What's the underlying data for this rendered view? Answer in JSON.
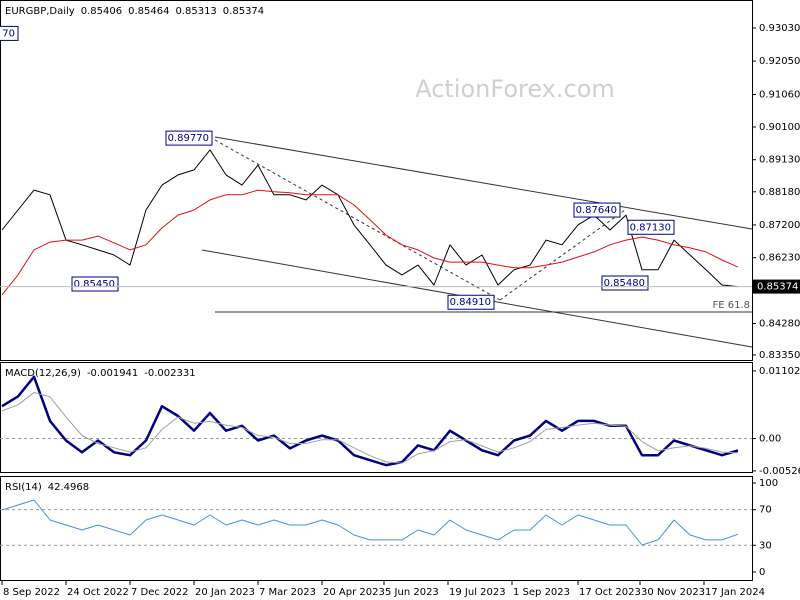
{
  "watermark": "ActionForex.com",
  "chart_data": [
    {
      "type": "line",
      "title": "EURGBP,Daily",
      "readout": [
        0.85406,
        0.85464,
        0.85313,
        0.85374
      ],
      "xlim": [
        -1,
        375
      ],
      "xticks": [
        {
          "value": 0,
          "label": "8 Sep 2022"
        },
        {
          "value": 32,
          "label": "24 Oct 2022"
        },
        {
          "value": 64,
          "label": "7 Dec 2022"
        },
        {
          "value": 96,
          "label": "20 Jan 2023"
        },
        {
          "value": 128,
          "label": "7 Mar 2023"
        },
        {
          "value": 160,
          "label": "20 Apr 2023"
        },
        {
          "value": 191,
          "label": "5 Jun 2023"
        },
        {
          "value": 223,
          "label": "19 Jul 2023"
        },
        {
          "value": 255,
          "label": "1 Sep 2023"
        },
        {
          "value": 288,
          "label": "17 Oct 2023"
        },
        {
          "value": 319,
          "label": "30 Nov 2023"
        },
        {
          "value": 351,
          "label": "17 Jan 2024"
        }
      ],
      "x": [
        0,
        8,
        16,
        24,
        32,
        40,
        48,
        56,
        64,
        72,
        80,
        88,
        96,
        104,
        112,
        120,
        128,
        136,
        144,
        152,
        160,
        168,
        176,
        184,
        192,
        200,
        208,
        216,
        224,
        232,
        240,
        248,
        256,
        264,
        272,
        280,
        288,
        296,
        304,
        312,
        320,
        328,
        336,
        344,
        352,
        360,
        368
      ],
      "ylim": [
        0.832,
        0.938
      ],
      "yticks": [
        {
          "value": 0.9303,
          "label": "0.93030"
        },
        {
          "value": 0.9205,
          "label": "0.92050"
        },
        {
          "value": 0.9106,
          "label": "0.91060"
        },
        {
          "value": 0.901,
          "label": "0.90100"
        },
        {
          "value": 0.8913,
          "label": "0.89130"
        },
        {
          "value": 0.8818,
          "label": "0.88180"
        },
        {
          "value": 0.872,
          "label": "0.87200"
        },
        {
          "value": 0.8623,
          "label": "0.86230"
        },
        {
          "value": 0.8526,
          "label": "0.85260"
        },
        {
          "value": 0.8428,
          "label": "0.84280"
        },
        {
          "value": 0.8335,
          "label": "0.83350"
        }
      ],
      "series": [
        {
          "color": "#000000",
          "values": [
            0.8705,
            0.8764,
            0.8823,
            0.8809,
            0.8675,
            0.8661,
            0.8646,
            0.8631,
            0.8601,
            0.8764,
            0.8838,
            0.8868,
            0.8883,
            0.8942,
            0.8868,
            0.8838,
            0.8897,
            0.8809,
            0.8809,
            0.8794,
            0.8838,
            0.8809,
            0.872,
            0.8661,
            0.8601,
            0.8572,
            0.8601,
            0.8542,
            0.8661,
            0.8601,
            0.8631,
            0.8542,
            0.8587,
            0.8601,
            0.8675,
            0.8661,
            0.872,
            0.8749,
            0.8705,
            0.8749,
            0.8587,
            0.8587,
            0.8675,
            0.8631,
            0.8587,
            0.8542,
            0.85374
          ]
        },
        {
          "color": "#e01010",
          "values": [
            0.8513,
            0.8572,
            0.8646,
            0.8669,
            0.8675,
            0.8675,
            0.8687,
            0.8667,
            0.8646,
            0.8661,
            0.8711,
            0.8749,
            0.8764,
            0.8794,
            0.8809,
            0.8809,
            0.8823,
            0.8818,
            0.8815,
            0.8809,
            0.8809,
            0.8809,
            0.8779,
            0.8735,
            0.869,
            0.8661,
            0.8646,
            0.8622,
            0.861,
            0.861,
            0.861,
            0.8601,
            0.8593,
            0.8593,
            0.8601,
            0.861,
            0.8625,
            0.864,
            0.8661,
            0.8675,
            0.8684,
            0.8675,
            0.8661,
            0.8652,
            0.864,
            0.8616,
            0.8595
          ]
        }
      ],
      "annotations": [
        {
          "text": "70",
          "x": 8,
          "y": 0.9287
        },
        {
          "text": "0.89770",
          "x": 105,
          "y": 0.8977
        },
        {
          "text": "0.85450",
          "x": 58,
          "y": 0.8545
        },
        {
          "text": "0.84910",
          "x": 246,
          "y": 0.8491
        },
        {
          "text": "0.87640",
          "x": 309,
          "y": 0.8764
        },
        {
          "text": "0.87130",
          "x": 336,
          "y": 0.8713
        },
        {
          "text": "0.85480",
          "x": 323,
          "y": 0.8548
        }
      ],
      "hlines": [
        {
          "value": 0.8462,
          "label": "FE 61.8"
        }
      ]
    },
    {
      "type": "line",
      "title": "MACD(12,26,9)",
      "readout": [
        -0.001941,
        -0.002331
      ],
      "ylim": [
        -0.00545,
        0.01215
      ],
      "yticks": [
        0.011027,
        {
          "value": 0,
          "label": "0.00"
        },
        -0.005267
      ],
      "levels": [
        0
      ],
      "series": [
        {
          "color": "#000080",
          "width": 2.5,
          "values": [
            0.00527,
            0.00687,
            0.01007,
            0.00288,
            -0.00032,
            -0.00224,
            -0.00032,
            -0.00224,
            -0.00272,
            -0.00032,
            0.00527,
            0.00368,
            0.00128,
            0.00416,
            0.00128,
            0.00208,
            -0.00032,
            0.00048,
            -0.0016,
            -0.00032,
            0.00048,
            -0.00032,
            -0.00272,
            -0.00352,
            -0.00432,
            -0.00384,
            -0.00112,
            -0.00192,
            0.00128,
            -0.00032,
            -0.00192,
            -0.00272,
            -0.00032,
            0.00048,
            0.00288,
            0.00128,
            0.00288,
            0.00288,
            0.00208,
            0.00208,
            -0.00272,
            -0.00272,
            -0.00032,
            -0.00112,
            -0.00192,
            -0.00272,
            -0.00194
          ]
        },
        {
          "color": "#a0a0a0",
          "width": 1,
          "values": [
            0.0045,
            0.0055,
            0.0075,
            0.0068,
            0.0035,
            0.0005,
            -0.0008,
            -0.0015,
            -0.0022,
            -0.0015,
            0.0015,
            0.0035,
            0.0025,
            0.0028,
            0.0022,
            0.0018,
            0.0005,
            0.0002,
            -0.0008,
            -0.0008,
            -0.0002,
            -0.0002,
            -0.0015,
            -0.0028,
            -0.0038,
            -0.004,
            -0.0025,
            -0.002,
            -0.0005,
            -0.0002,
            -0.0012,
            -0.0022,
            -0.0015,
            -0.0005,
            0.0015,
            0.0018,
            0.0022,
            0.0025,
            0.0022,
            0.002,
            -0.0005,
            -0.002,
            -0.0015,
            -0.0012,
            -0.0016,
            -0.0022,
            -0.00233
          ]
        }
      ]
    },
    {
      "type": "line",
      "title": "RSI(14)",
      "readout": [
        42.4968
      ],
      "ylim": [
        -9,
        105.6
      ],
      "yticks": [
        100,
        70,
        30,
        0
      ],
      "levels": [
        70,
        30
      ],
      "series": [
        {
          "color": "#4a8fd8",
          "width": 1,
          "values": [
            69.7,
            75.3,
            80.9,
            58.4,
            52.8,
            47.2,
            52.8,
            47.2,
            41.6,
            58.4,
            64.0,
            58.4,
            52.8,
            64.0,
            52.8,
            58.4,
            52.8,
            58.4,
            52.8,
            52.8,
            58.4,
            52.8,
            41.6,
            36.0,
            36.0,
            36.0,
            47.2,
            41.6,
            58.4,
            47.2,
            41.6,
            36.0,
            47.2,
            47.2,
            64.0,
            52.8,
            64.0,
            58.4,
            52.8,
            52.8,
            30.3,
            36.0,
            58.4,
            41.6,
            36.0,
            36.0,
            42.5
          ]
        }
      ]
    }
  ]
}
